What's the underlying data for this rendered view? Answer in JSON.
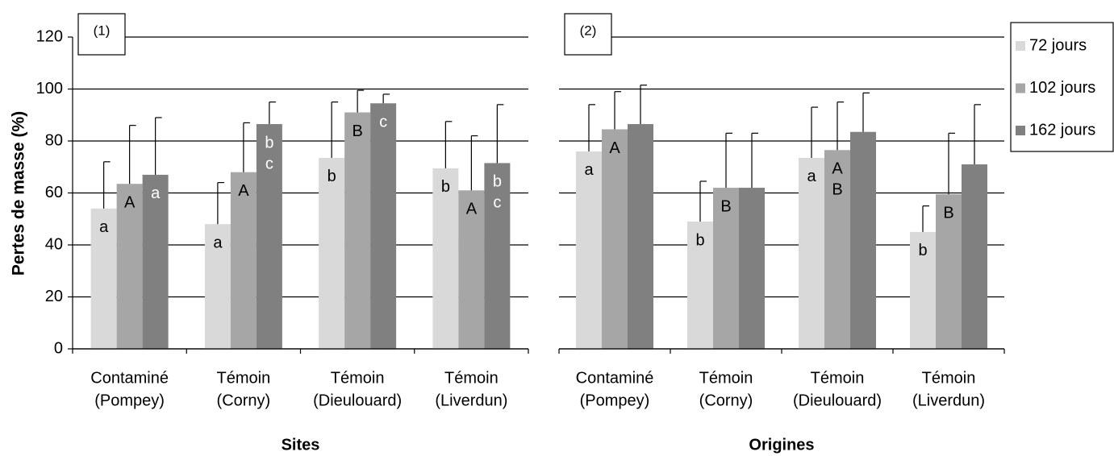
{
  "chart_data": {
    "type": "bar",
    "y_label": "Pertes de masse (%)",
    "ylim": [
      0,
      120
    ],
    "yticks": [
      0,
      20,
      40,
      60,
      80,
      100,
      120
    ],
    "grid": true,
    "legend": "right",
    "series": [
      {
        "name": "72 jours",
        "color": "#d9d9d9"
      },
      {
        "name": "102 jours",
        "color": "#a6a6a6"
      },
      {
        "name": "162 jours",
        "color": "#808080"
      }
    ],
    "panels": [
      {
        "label": "(1)",
        "x_label": "Sites",
        "categories": [
          [
            "Contaminé",
            "(Pompey)"
          ],
          [
            "Témoin",
            "(Corny)"
          ],
          [
            "Témoin",
            "(Dieulouard)"
          ],
          [
            "Témoin",
            "(Liverdun)"
          ]
        ],
        "series": [
          {
            "values": [
              54,
              48,
              73.5,
              69.5
            ],
            "errors": [
              18,
              16,
              21.5,
              18
            ],
            "letters": [
              "a",
              "a",
              "b",
              "b"
            ]
          },
          {
            "values": [
              63.5,
              68,
              91,
              61
            ],
            "errors": [
              22.5,
              19,
              8.5,
              21
            ],
            "letters": [
              "A",
              "A",
              "B",
              "A"
            ]
          },
          {
            "values": [
              67,
              86.5,
              94.5,
              71.5
            ],
            "errors": [
              22,
              8.5,
              3.5,
              22.5
            ],
            "letters": [
              "a",
              [
                "b",
                "c"
              ],
              "c",
              [
                "b",
                "c"
              ]
            ]
          }
        ]
      },
      {
        "label": "(2)",
        "x_label": "Origines",
        "categories": [
          [
            "Contaminé",
            "(Pompey)"
          ],
          [
            "Témoin",
            "(Corny)"
          ],
          [
            "Témoin",
            "(Dieulouard)"
          ],
          [
            "Témoin",
            "(Liverdun)"
          ]
        ],
        "series": [
          {
            "values": [
              76,
              49,
              73.5,
              45
            ],
            "errors": [
              18,
              15.5,
              19.5,
              10
            ],
            "letters": [
              "a",
              "b",
              "a",
              "b"
            ]
          },
          {
            "values": [
              84.5,
              62,
              76.5,
              59.5
            ],
            "errors": [
              14.5,
              21,
              18.5,
              23.5
            ],
            "letters": [
              "A",
              "B",
              [
                "A",
                "B"
              ],
              "B"
            ]
          },
          {
            "values": [
              86.5,
              62,
              83.5,
              71
            ],
            "errors": [
              15,
              21,
              15,
              23
            ]
          }
        ]
      }
    ]
  }
}
